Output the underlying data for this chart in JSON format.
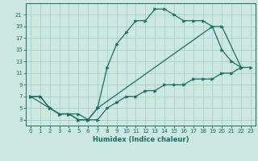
{
  "xlabel": "Humidex (Indice chaleur)",
  "bg_color": "#cde8e0",
  "line_color": "#1a6e64",
  "grid_color": "#a0ccc4",
  "xlim": [
    -0.5,
    23.5
  ],
  "ylim": [
    2,
    23
  ],
  "xticks": [
    0,
    1,
    2,
    3,
    4,
    5,
    6,
    7,
    8,
    9,
    10,
    11,
    12,
    13,
    14,
    15,
    16,
    17,
    18,
    19,
    20,
    21,
    22,
    23
  ],
  "yticks": [
    3,
    5,
    7,
    9,
    11,
    13,
    15,
    17,
    19,
    21
  ],
  "line1_x": [
    0,
    1,
    2,
    3,
    4,
    5,
    6,
    7,
    8,
    9,
    10,
    11,
    12,
    13,
    14,
    15,
    16,
    17,
    18,
    19,
    20,
    21,
    22
  ],
  "line1_y": [
    7,
    7,
    5,
    4,
    4,
    3,
    3,
    5,
    12,
    16,
    18,
    20,
    20,
    22,
    22,
    21,
    20,
    20,
    20,
    19,
    15,
    13,
    12
  ],
  "line2_x": [
    0,
    1,
    2,
    3,
    4,
    5,
    6,
    7,
    8,
    9,
    10,
    11,
    12,
    13,
    14,
    15,
    16,
    17,
    18,
    19,
    20,
    21,
    22,
    23
  ],
  "line2_y": [
    7,
    7,
    5,
    4,
    4,
    3,
    3,
    3,
    5,
    6,
    7,
    7,
    8,
    8,
    9,
    9,
    9,
    10,
    10,
    10,
    11,
    11,
    12,
    12
  ],
  "line3_x": [
    0,
    2,
    3,
    4,
    5,
    6,
    7,
    19,
    20,
    22
  ],
  "line3_y": [
    7,
    5,
    4,
    4,
    4,
    3,
    5,
    19,
    19,
    12
  ]
}
